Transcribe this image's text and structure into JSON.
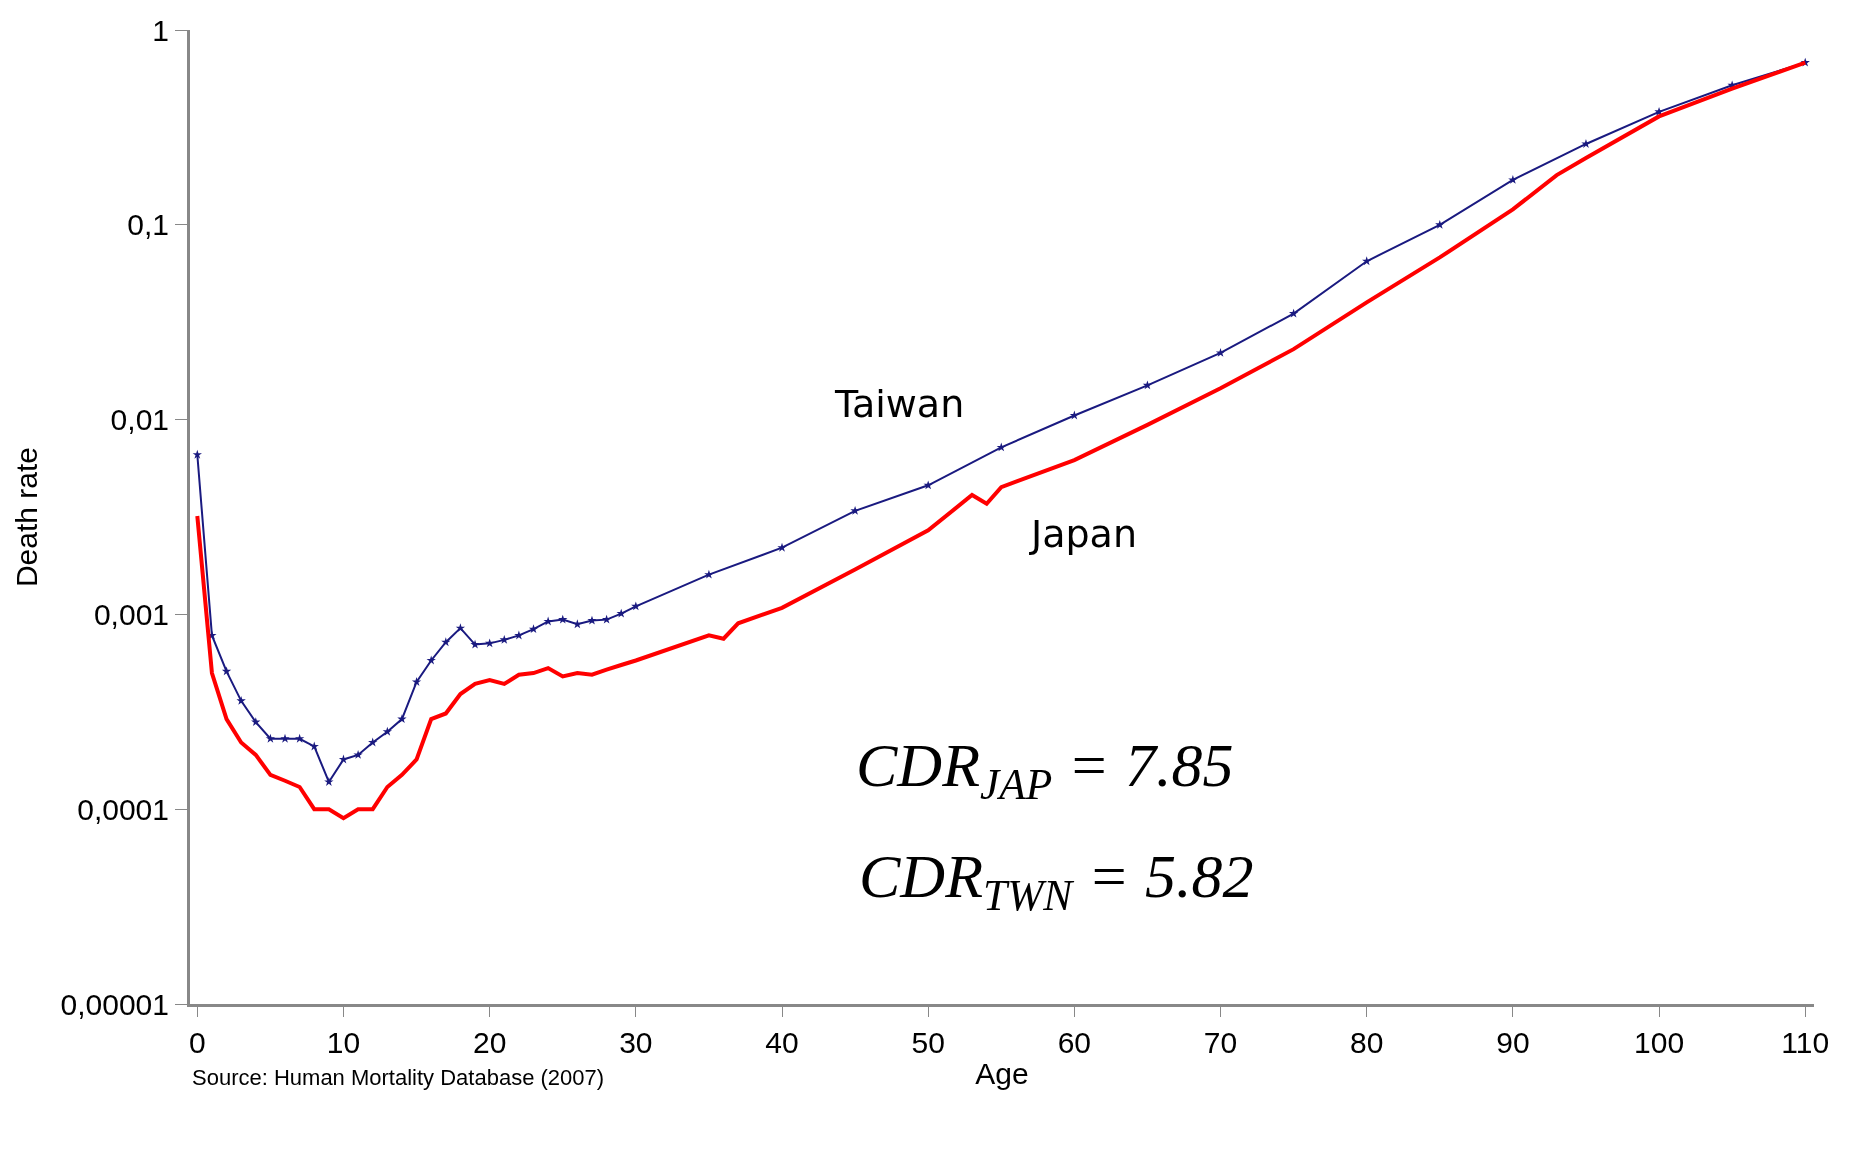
{
  "chart_data": {
    "type": "line",
    "xlabel": "Age",
    "ylabel": "Death rate",
    "log": "y",
    "xlim": [
      -0.5,
      110.6
    ],
    "xticks": [
      0,
      10,
      20,
      30,
      40,
      50,
      60,
      70,
      80,
      90,
      100,
      110
    ],
    "ylim": [
      1e-05,
      1
    ],
    "yticks": [
      {
        "value": 1e-05,
        "label": "0,00001"
      },
      {
        "value": 0.0001,
        "label": "0,0001"
      },
      {
        "value": 0.001,
        "label": "0,001"
      },
      {
        "value": 0.01,
        "label": "0,01"
      },
      {
        "value": 0.1,
        "label": "0,1"
      },
      1
    ],
    "legend": false,
    "series": [
      {
        "name": "Taiwan",
        "color": "#1a1a80",
        "marker": "star",
        "x": [
          0,
          1,
          2,
          3,
          4,
          5,
          6,
          7,
          8,
          9,
          10,
          11,
          12,
          13,
          14,
          15,
          16,
          17,
          18,
          19,
          20,
          21,
          22,
          23,
          24,
          25,
          26,
          27,
          28,
          29,
          30,
          35,
          40,
          45,
          50,
          55,
          60,
          65,
          70,
          75,
          80,
          85,
          90,
          95,
          100,
          105,
          110
        ],
        "values": [
          0.0066,
          0.00078,
          0.00051,
          0.00036,
          0.00028,
          0.00023,
          0.00023,
          0.00023,
          0.00021,
          0.000138,
          0.00018,
          0.00019,
          0.00022,
          0.00025,
          0.00029,
          0.00045,
          0.00058,
          0.00072,
          0.00085,
          0.0007,
          0.00071,
          0.00074,
          0.00078,
          0.00084,
          0.00092,
          0.00094,
          0.00089,
          0.00093,
          0.00094,
          0.00101,
          0.0011,
          0.0016,
          0.0022,
          0.0034,
          0.0046,
          0.0072,
          0.0105,
          0.015,
          0.022,
          0.035,
          0.065,
          0.1,
          0.17,
          0.26,
          0.38,
          0.52,
          0.68
        ]
      },
      {
        "name": "Japan",
        "color": "#ff0000",
        "marker": "none",
        "x": [
          0,
          1,
          2,
          3,
          4,
          5,
          6,
          7,
          8,
          9,
          10,
          11,
          12,
          13,
          14,
          15,
          16,
          17,
          18,
          19,
          20,
          21,
          22,
          23,
          24,
          25,
          26,
          27,
          28,
          29,
          30,
          35,
          36,
          37,
          40,
          45,
          50,
          53,
          54,
          55,
          60,
          65,
          70,
          75,
          80,
          85,
          90,
          93,
          95,
          100,
          105,
          110
        ],
        "values": [
          0.0032,
          0.0005,
          0.00029,
          0.00022,
          0.00019,
          0.00015,
          0.00014,
          0.00013,
          0.0001,
          0.0001,
          9e-05,
          0.0001,
          0.0001,
          0.00013,
          0.00015,
          0.00018,
          0.00029,
          0.00031,
          0.00039,
          0.00044,
          0.00046,
          0.00044,
          0.00049,
          0.0005,
          0.00053,
          0.00048,
          0.0005,
          0.00049,
          0.00052,
          0.00055,
          0.00058,
          0.00078,
          0.00075,
          0.0009,
          0.00108,
          0.0017,
          0.0027,
          0.0041,
          0.0037,
          0.0045,
          0.0062,
          0.0094,
          0.0145,
          0.023,
          0.04,
          0.068,
          0.12,
          0.18,
          0.22,
          0.36,
          0.5,
          0.68
        ]
      }
    ],
    "annotations": [
      "CDR$_{JAP}$ = 7.85",
      "CDR$_{TWN}$ = 5.82",
      "Source: Human Mortality Database (2007)"
    ]
  }
}
